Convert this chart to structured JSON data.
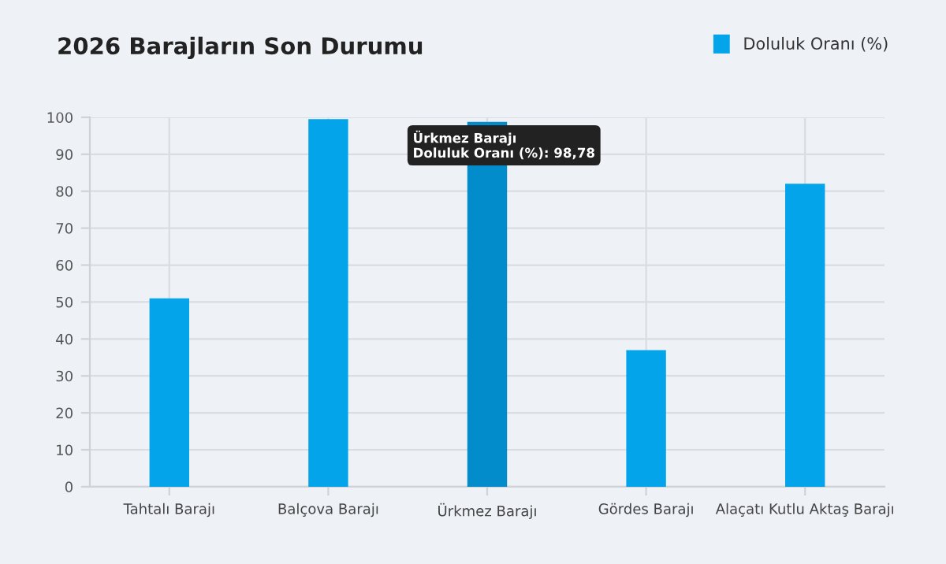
{
  "chart_data": {
    "type": "bar",
    "title": "2026 Barajların Son Durumu",
    "categories": [
      "Tahtalı Barajı",
      "Balçova Barajı",
      "Ürkmez Barajı",
      "Gördes Barajı",
      "Alaçatı Kutlu Aktaş Barajı"
    ],
    "series": [
      {
        "name": "Doluluk Oranı (%)",
        "color": "#03a4ea",
        "colors": [
          "#03a4ea",
          "#03a4ea",
          "#028ccc",
          "#03a4ea",
          "#03a4ea"
        ],
        "values": [
          51,
          99.5,
          98.78,
          37,
          82
        ]
      }
    ],
    "ylim": [
      0,
      100
    ],
    "yticks": [
      0,
      10,
      20,
      30,
      40,
      50,
      60,
      70,
      80,
      90,
      100
    ],
    "grid": true,
    "legend": "top right",
    "annotations": [
      {
        "text": "Ürkmez Barajı\nDoluluk Oranı (%): 98,78",
        "x": "Ürkmez Barajı",
        "y": 98.78
      }
    ]
  }
}
